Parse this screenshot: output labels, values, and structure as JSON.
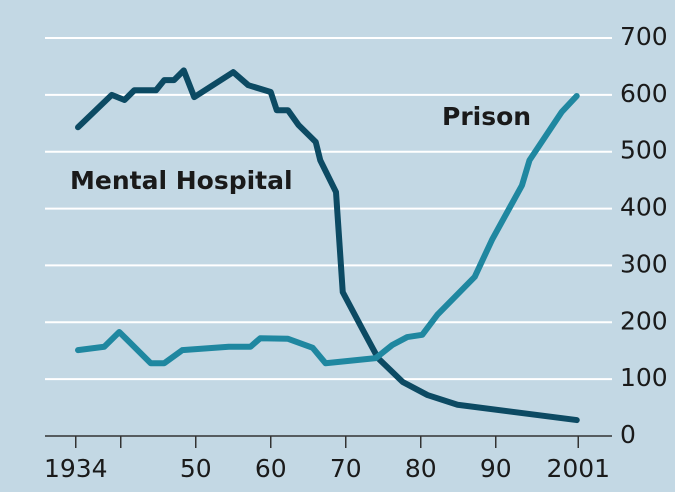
{
  "chart_data": {
    "type": "line",
    "xlim": [
      1929.9,
      2005.5
    ],
    "ylim": [
      0,
      700
    ],
    "yticks": [
      0,
      100,
      200,
      300,
      400,
      500,
      600,
      700
    ],
    "xticks": [
      1934,
      {
        "value": 1940,
        "label": null
      },
      {
        "value": 1950,
        "label": "50"
      },
      {
        "value": 1960,
        "label": "60"
      },
      {
        "value": 1970,
        "label": "70"
      },
      {
        "value": 1980,
        "label": "80"
      },
      {
        "value": 1990,
        "label": "90"
      },
      2001
    ],
    "grid": true,
    "series": [
      {
        "name": "Mental Hospital",
        "color": "#0c4a63",
        "x": [
          1934.3,
          1938.8,
          1940.5,
          1941.8,
          1944.7,
          1945.8,
          1947.1,
          1948.4,
          1949.8,
          1955,
          1957,
          1960,
          1960.8,
          1962.3,
          1963.7,
          1966,
          1966.6,
          1968.7,
          1969.6,
          1972.3,
          1974.3,
          1977.6,
          1980.9,
          1984.9,
          2000.8
        ],
        "values": [
          543,
          600,
          591,
          608,
          608,
          626,
          626,
          643,
          596,
          640,
          617,
          605,
          573,
          573,
          547,
          517,
          485,
          429,
          253,
          186,
          137,
          95,
          72,
          55,
          28
        ]
      },
      {
        "name": "Prison",
        "color": "#1f87a0",
        "x": [
          1934.3,
          1937.8,
          1939.8,
          1944,
          1945.8,
          1948.2,
          1954.4,
          1957.3,
          1958.6,
          1962.3,
          1965.6,
          1967.3,
          1974,
          1976.2,
          1978.2,
          1980.2,
          1982.2,
          1987.2,
          1989.5,
          1993.5,
          1994.5,
          1998.8,
          2000.8
        ],
        "values": [
          151,
          157,
          183,
          128,
          128,
          151,
          157,
          157,
          172,
          171,
          155,
          128,
          137,
          160,
          174,
          178,
          213,
          280,
          345,
          441,
          485,
          570,
          598
        ]
      }
    ]
  }
}
